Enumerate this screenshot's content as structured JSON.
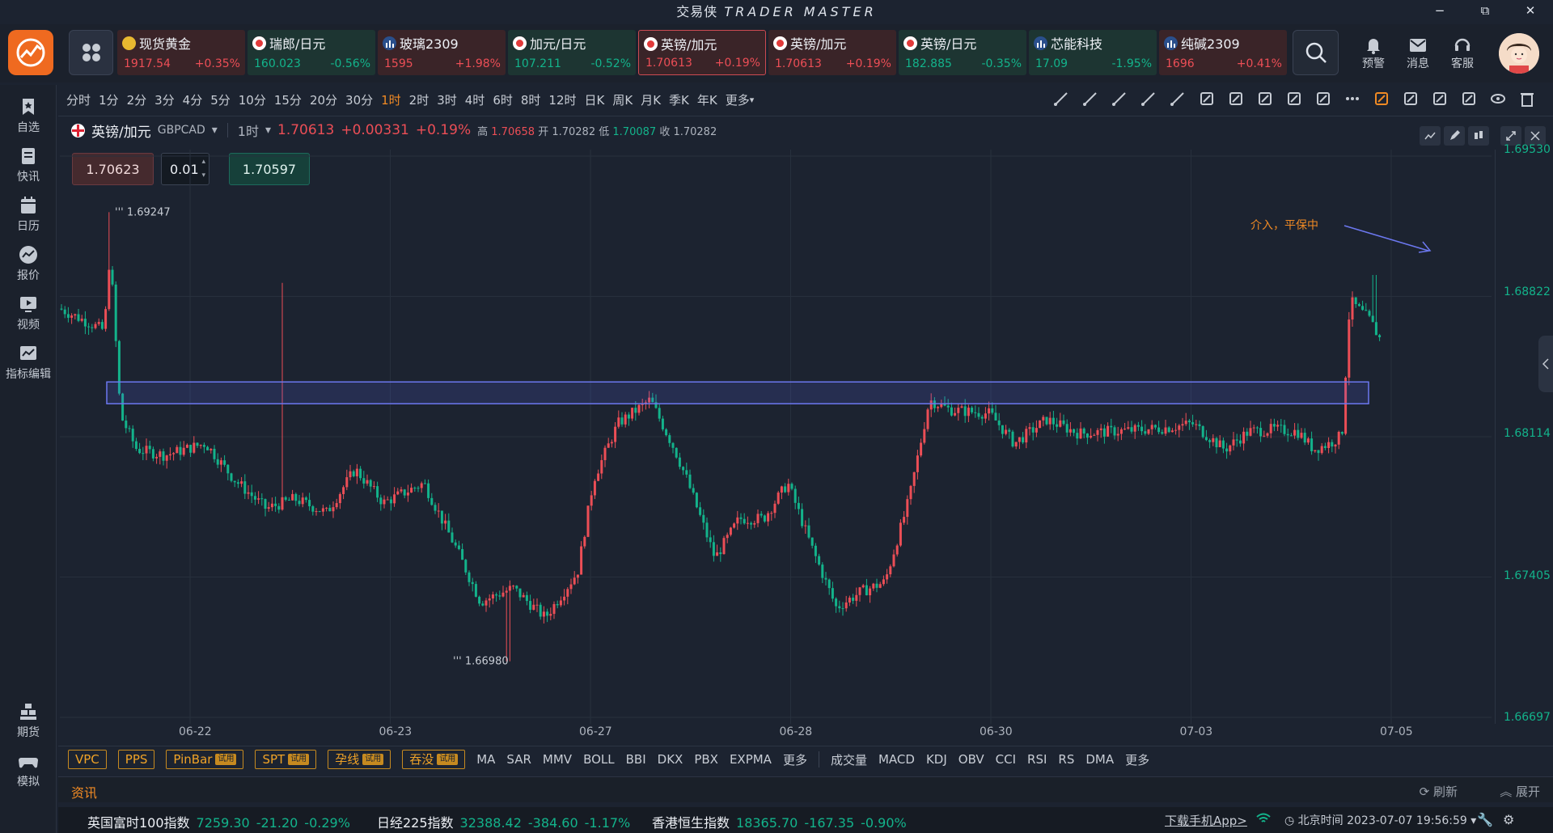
{
  "window": {
    "title_cn": "交易侠",
    "title_en": "TRADER MASTER",
    "minimize": "−",
    "restore": "⧉",
    "close": "✕"
  },
  "tickers": [
    {
      "name": "现货黄金",
      "price": "1917.54",
      "change": "+0.35%",
      "trend": "up",
      "icon": "gold-coin-icon",
      "selected": false
    },
    {
      "name": "瑞郎/日元",
      "price": "160.023",
      "change": "-0.56%",
      "trend": "down",
      "icon": "flag-icon",
      "selected": false
    },
    {
      "name": "玻璃2309",
      "price": "1595",
      "change": "+1.98%",
      "trend": "up",
      "icon": "futures-bar-icon",
      "selected": false
    },
    {
      "name": "加元/日元",
      "price": "107.211",
      "change": "-0.52%",
      "trend": "down",
      "icon": "flag-icon",
      "selected": false
    },
    {
      "name": "英镑/加元",
      "price": "1.70613",
      "change": "+0.19%",
      "trend": "up",
      "icon": "flag-icon",
      "selected": true
    },
    {
      "name": "英镑/加元",
      "price": "1.70613",
      "change": "+0.19%",
      "trend": "up",
      "icon": "flag-icon",
      "selected": false
    },
    {
      "name": "英镑/日元",
      "price": "182.885",
      "change": "-0.35%",
      "trend": "down",
      "icon": "flag-icon",
      "selected": false
    },
    {
      "name": "芯能科技",
      "price": "17.09",
      "change": "-1.95%",
      "trend": "down",
      "icon": "stock-bar-icon",
      "selected": false
    },
    {
      "name": "纯碱2309",
      "price": "1696",
      "change": "+0.41%",
      "trend": "up",
      "icon": "futures-bar-icon",
      "selected": false
    }
  ],
  "top_actions": {
    "alert": "预警",
    "message": "消息",
    "service": "客服"
  },
  "sidebar": {
    "items": [
      "自选",
      "快讯",
      "日历",
      "报价",
      "视频",
      "指标编辑"
    ],
    "bottom": [
      "期货",
      "模拟"
    ]
  },
  "timeframes": [
    "分时",
    "1分",
    "2分",
    "3分",
    "4分",
    "5分",
    "10分",
    "15分",
    "20分",
    "30分",
    "1时",
    "2时",
    "3时",
    "4时",
    "6时",
    "8时",
    "12时",
    "日K",
    "周K",
    "月K",
    "季K",
    "年K",
    "更多"
  ],
  "active_timeframe": "1时",
  "symbol": {
    "name": "英镑/加元",
    "code": "GBPCAD",
    "period": "1时",
    "price": "1.70613",
    "change": "+0.00331",
    "pct": "+0.19%",
    "high_label": "高",
    "high": "1.70658",
    "open_label": "开",
    "open": "1.70282",
    "low_label": "低",
    "low": "1.70087",
    "close_label": "收",
    "close": "1.70282"
  },
  "order": {
    "sell": "1.70623",
    "lot": "0.01",
    "buy": "1.70597"
  },
  "chart_data": {
    "type": "candlestick",
    "y_ticks": [
      "1.69530",
      "1.68822",
      "1.68114",
      "1.67405",
      "1.66697"
    ],
    "ylim": [
      1.66697,
      1.6953
    ],
    "x_ticks": [
      "06-22",
      "06-23",
      "06-27",
      "06-28",
      "06-30",
      "07-03",
      "07-05"
    ],
    "annotations": {
      "high_mark": "1.69247",
      "low_mark": "1.66980",
      "note": "介入，平保中"
    },
    "zone": {
      "low": 1.6828,
      "high": 1.6839
    }
  },
  "indicators_main": {
    "boxes": [
      {
        "label": "VPC",
        "trial": false
      },
      {
        "label": "PPS",
        "trial": false
      },
      {
        "label": "PinBar",
        "trial": true
      },
      {
        "label": "SPT",
        "trial": true
      },
      {
        "label": "孕线",
        "trial": true
      },
      {
        "label": "吞没",
        "trial": true
      }
    ],
    "trial_label": "试用",
    "overlays": [
      "MA",
      "SAR",
      "MMV",
      "BOLL",
      "BBI",
      "DKX",
      "PBX",
      "EXPMA",
      "更多"
    ],
    "oscillators": [
      "成交量",
      "MACD",
      "KDJ",
      "OBV",
      "CCI",
      "RSI",
      "RS",
      "DMA",
      "更多"
    ]
  },
  "news": {
    "label": "资讯",
    "refresh": "刷新",
    "expand": "展开"
  },
  "status": {
    "indices": [
      {
        "name": "英国富时100指数",
        "value": "7259.30",
        "change": "-21.20",
        "pct": "-0.29%"
      },
      {
        "name": "日经225指数",
        "value": "32388.42",
        "change": "-384.60",
        "pct": "-1.17%"
      },
      {
        "name": "香港恒生指数",
        "value": "18365.70",
        "change": "-167.35",
        "pct": "-0.90%"
      }
    ],
    "download": "下载手机App>",
    "time": "北京时间 2023-07-07 19:56:59"
  },
  "colors": {
    "up": "#ec4e56",
    "down": "#13b38b",
    "accent": "#f08a24",
    "bg": "#1c2330"
  }
}
